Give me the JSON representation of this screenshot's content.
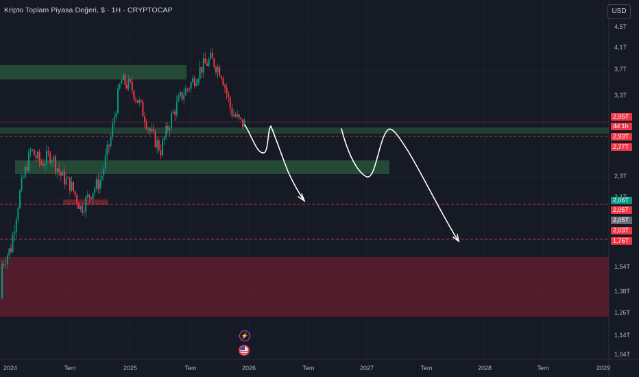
{
  "header": {
    "title": "Kripto Toplam Piyasa Değeri, $ · 1H · CRYPTOCAP",
    "currency_button": "USD"
  },
  "price_axis": {
    "labels": [
      "4,5T",
      "4,1T",
      "3,7T",
      "3,3T",
      "2,3T",
      "2,1T",
      "1,54T",
      "1,38T",
      "1,26T",
      "1,14T",
      "1,04T"
    ],
    "badges": [
      {
        "text": "2,95T",
        "color": "#f23645"
      },
      {
        "text": "4d 1h",
        "color": "#f23645"
      },
      {
        "text": "2,93T",
        "color": "#f23645"
      },
      {
        "text": "2,77T",
        "color": "#f23645"
      },
      {
        "text": "2,06T",
        "color": "#089981"
      },
      {
        "text": "2,05T",
        "color": "#f23645"
      },
      {
        "text": "2,05T",
        "color": "#6a6d78"
      },
      {
        "text": "2,03T",
        "color": "#f23645"
      },
      {
        "text": "1,76T",
        "color": "#f23645"
      }
    ]
  },
  "time_axis": {
    "labels": [
      "2024",
      "Tem",
      "2025",
      "Tem",
      "2026",
      "Tem",
      "2027",
      "Tem",
      "2028",
      "Tem",
      "2029"
    ]
  },
  "chart_data": {
    "type": "candlestick",
    "symbol": "CRYPTOCAP",
    "interval": "1H",
    "currency": "USD",
    "price_range": [
      1.02,
      4.7
    ],
    "x_range": [
      "2023-11",
      "2029-01"
    ],
    "close_path": [
      [
        "2023-11",
        1.34
      ],
      [
        "2023-12",
        1.55
      ],
      [
        "2024-01",
        1.68
      ],
      [
        "2024-02",
        2.2
      ],
      [
        "2024-03",
        2.6
      ],
      [
        "2024-04",
        2.45
      ],
      [
        "2024-05",
        2.55
      ],
      [
        "2024-06",
        2.32
      ],
      [
        "2024-07",
        2.22
      ],
      [
        "2024-08",
        2.0
      ],
      [
        "2024-09",
        2.15
      ],
      [
        "2024-10",
        2.28
      ],
      [
        "2024-11",
        2.75
      ],
      [
        "2024-12",
        3.55
      ],
      [
        "2025-01",
        3.45
      ],
      [
        "2025-02",
        3.15
      ],
      [
        "2025-03",
        2.8
      ],
      [
        "2025-04",
        2.6
      ],
      [
        "2025-05",
        3.0
      ],
      [
        "2025-06",
        3.3
      ],
      [
        "2025-07",
        3.5
      ],
      [
        "2025-08",
        3.75
      ],
      [
        "2025-09",
        3.9
      ],
      [
        "2025-10",
        3.7
      ],
      [
        "2025-11",
        3.1
      ],
      [
        "2025-12",
        2.93
      ]
    ],
    "zones": [
      {
        "type": "supply",
        "color": "green"
      },
      {
        "type": "demand",
        "color": "green"
      },
      {
        "type": "support",
        "color": "red"
      }
    ],
    "horizontal_levels": [
      2.95,
      2.77,
      2.06,
      1.76
    ]
  },
  "colors": {
    "background": "#161a25",
    "up": "#089981",
    "down": "#f23645",
    "zone_green": "#2a5a3c",
    "zone_red": "#5c1f2f"
  },
  "icons": {
    "events": [
      "lightning-icon",
      "us-flag-icon"
    ]
  }
}
